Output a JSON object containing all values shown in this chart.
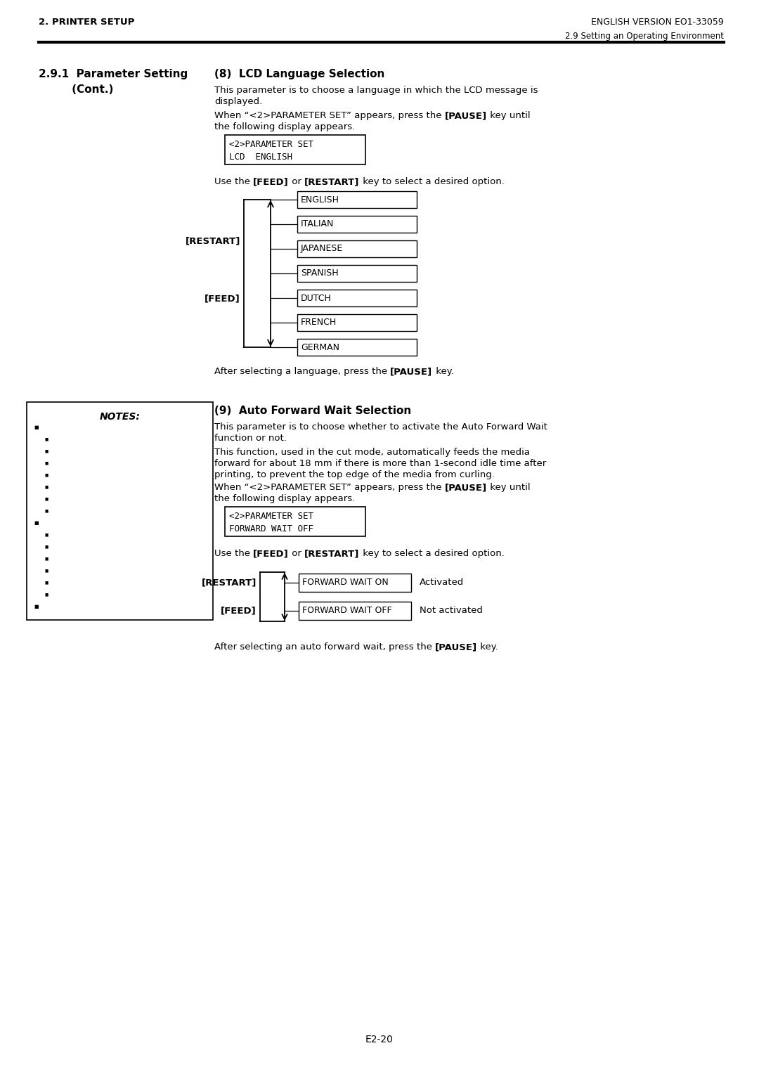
{
  "header_left": "2. PRINTER SETUP",
  "header_right": "ENGLISH VERSION EO1-33059",
  "header_sub_right": "2.9 Setting an Operating Environment",
  "left_title1": "2.9.1  Parameter Setting",
  "left_title2": "         (Cont.)",
  "s8_title": "(8)  LCD Language Selection",
  "s8_p1": "This parameter is to choose a language in which the LCD message is displayed.",
  "s8_p2_a": "When “<2>PARAMETER SET” appears, press the ",
  "s8_p2_b": "[PAUSE]",
  "s8_p2_c": " key until the following display appears.",
  "lcd1": "<2>PARAMETER SET",
  "lcd2": "LCD  ENGLISH",
  "use_a": "Use the ",
  "use_b": "[FEED]",
  "use_c": " or ",
  "use_d": "[RESTART]",
  "use_e": " key to select a desired option.",
  "langs": [
    "ENGLISH",
    "ITALIAN",
    "JAPANESE",
    "SPANISH",
    "DUTCH",
    "FRENCH",
    "GERMAN"
  ],
  "restart": "[RESTART]",
  "feed": "[FEED]",
  "after_lang_a": "After selecting a language, press the ",
  "after_lang_b": "[PAUSE]",
  "after_lang_c": " key.",
  "notes": "NOTES:",
  "s9_title": "(9)  Auto Forward Wait Selection",
  "s9_p1": "This parameter is to choose whether to activate the Auto Forward Wait function or not.",
  "s9_p2_l1": "This function, used in the cut mode, automatically feeds the media",
  "s9_p2_l2": "forward for about 18 mm if there is more than 1-second idle time after",
  "s9_p2_l3": "printing, to prevent the top edge of the media from curling.",
  "s9_p3_a": "When “<2>PARAMETER SET” appears, press the ",
  "s9_p3_b": "[PAUSE]",
  "s9_p3_c": " key until the following display appears.",
  "fw1": "<2>PARAMETER SET",
  "fw2": "FORWARD WAIT OFF",
  "fw_on": "FORWARD WAIT ON",
  "fw_off": "FORWARD WAIT OFF",
  "fw_on_note": "Activated",
  "fw_off_note": "Not activated",
  "after_fw_a": "After selecting an auto forward wait, press the ",
  "after_fw_b": "[PAUSE]",
  "after_fw_c": " key.",
  "footer": "E2-20"
}
